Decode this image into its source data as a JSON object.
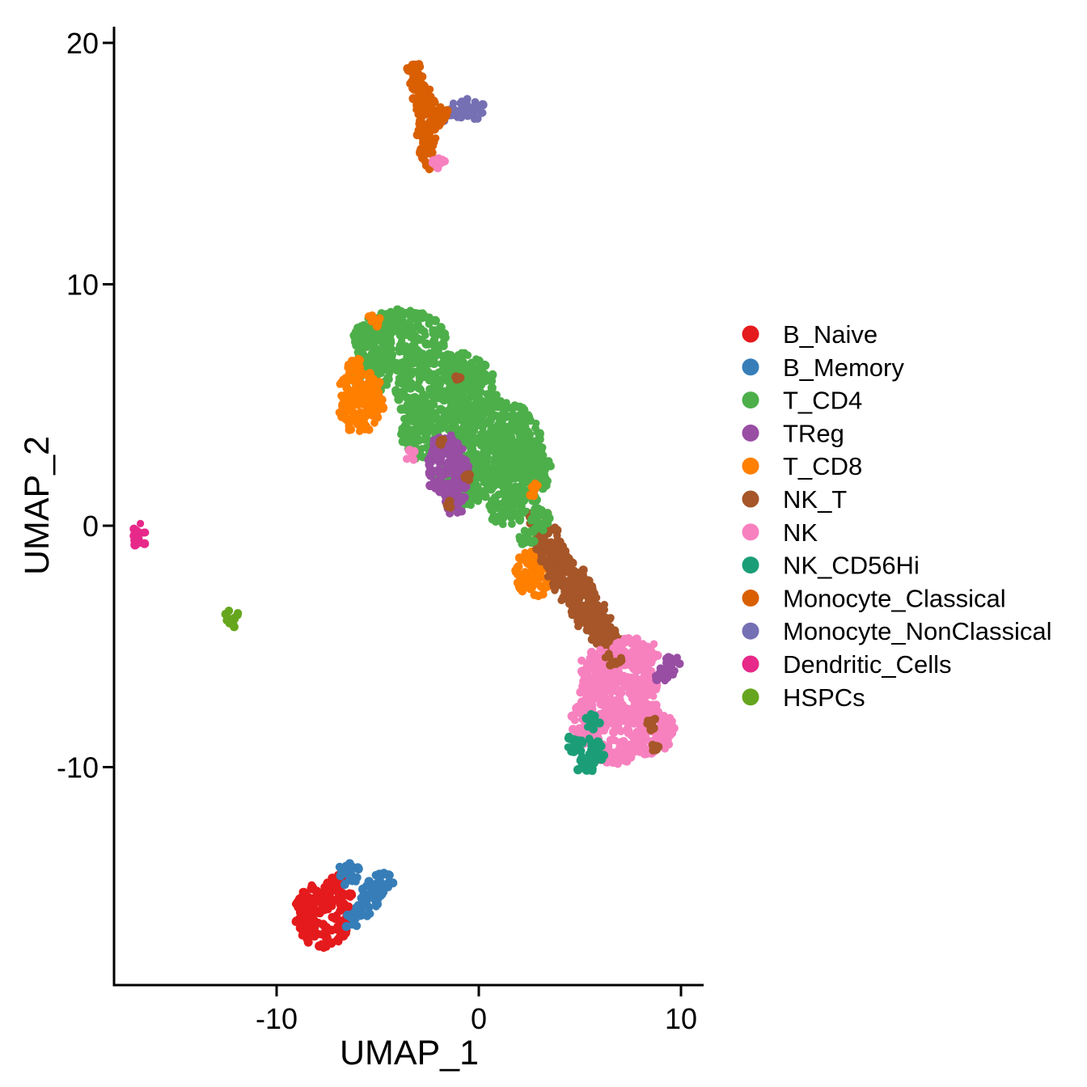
{
  "figure": {
    "background": "#ffffff",
    "axis_color": "#000000"
  },
  "chart_data": {
    "type": "scatter",
    "title": "",
    "xlabel": "UMAP_1",
    "ylabel": "UMAP_2",
    "xlim": [
      -18.0,
      11.2
    ],
    "ylim": [
      -19.0,
      20.7
    ],
    "grid": false,
    "legend_position": "right",
    "x_ticks": [
      {
        "value": -10,
        "label": "-10"
      },
      {
        "value": 0,
        "label": "0"
      },
      {
        "value": 10,
        "label": "10"
      }
    ],
    "y_ticks": [
      {
        "value": 20,
        "label": "20"
      },
      {
        "value": 10,
        "label": "10"
      },
      {
        "value": 0,
        "label": "0"
      },
      {
        "value": -10,
        "label": "-10"
      }
    ],
    "series": [
      {
        "name": "B_Naive",
        "color": "#e41a1c",
        "components": [
          [
            -7.75,
            -16.15,
            1.4,
            1.35,
            30
          ],
          [
            -7.05,
            -14.8,
            0.45,
            0.42,
            30
          ],
          [
            -6.32,
            -15.3,
            0.13,
            0.12,
            34
          ]
        ]
      },
      {
        "name": "B_Memory",
        "color": "#377eb8",
        "components": [
          [
            -6.5,
            -14.4,
            0.62,
            0.5,
            32
          ],
          [
            -6.3,
            -16.35,
            0.4,
            0.33,
            32
          ],
          [
            -5.8,
            -15.85,
            0.5,
            0.45,
            32
          ],
          [
            -5.25,
            -15.25,
            0.6,
            0.55,
            32
          ],
          [
            -4.75,
            -14.8,
            0.5,
            0.45,
            32
          ]
        ]
      },
      {
        "name": "T_CD4",
        "color": "#4daf4a",
        "components": [
          [
            -3.9,
            7.7,
            2.3,
            1.25,
            10
          ],
          [
            -1.6,
            5.6,
            2.5,
            1.7,
            10
          ],
          [
            0.8,
            3.6,
            2.4,
            1.6,
            10
          ],
          [
            2.1,
            2.2,
            1.5,
            1.4,
            10
          ],
          [
            -2.9,
            3.9,
            0.95,
            1.25,
            10
          ],
          [
            -0.7,
            1.8,
            1.5,
            1.0,
            10
          ],
          [
            1.4,
            0.8,
            1.0,
            0.8,
            10
          ],
          [
            -5.3,
            6.3,
            0.95,
            0.95,
            10
          ],
          [
            2.95,
            0.25,
            0.55,
            0.5,
            22
          ],
          [
            2.4,
            -0.5,
            0.4,
            0.35,
            22
          ]
        ]
      },
      {
        "name": "TReg",
        "color": "#984ea3",
        "components": [
          [
            -1.5,
            2.3,
            1.05,
            1.5,
            12
          ],
          [
            -1.95,
            3.2,
            0.5,
            0.5,
            12
          ],
          [
            -1.2,
            0.95,
            0.6,
            0.5,
            12
          ],
          [
            9.6,
            -5.8,
            0.45,
            0.42,
            22
          ],
          [
            9.15,
            -6.25,
            0.42,
            0.4,
            22
          ]
        ]
      },
      {
        "name": "T_CD8",
        "color": "#ff7f00",
        "components": [
          [
            -6.0,
            5.7,
            0.9,
            0.85,
            14
          ],
          [
            -5.9,
            4.8,
            1.0,
            0.95,
            14
          ],
          [
            -5.2,
            5.3,
            0.75,
            0.7,
            14
          ],
          [
            -6.15,
            6.6,
            0.4,
            0.38,
            14
          ],
          [
            -5.2,
            8.5,
            0.32,
            0.28,
            14
          ],
          [
            2.7,
            -2.0,
            0.95,
            1.0,
            14
          ],
          [
            2.75,
            1.5,
            0.33,
            0.3,
            20
          ]
        ]
      },
      {
        "name": "NK_T",
        "color": "#a65628",
        "components": [
          [
            3.0,
            0.2,
            0.55,
            0.5,
            16
          ],
          [
            3.35,
            -0.55,
            0.7,
            0.65,
            16
          ],
          [
            3.8,
            -1.3,
            0.8,
            0.75,
            16
          ],
          [
            4.3,
            -2.05,
            0.9,
            0.85,
            16
          ],
          [
            4.85,
            -2.85,
            0.9,
            0.85,
            16
          ],
          [
            5.45,
            -3.6,
            0.85,
            0.8,
            16
          ],
          [
            6.05,
            -4.3,
            0.75,
            0.7,
            16
          ],
          [
            6.5,
            -4.85,
            0.6,
            0.55,
            16
          ],
          [
            6.65,
            -5.55,
            0.42,
            0.3,
            20
          ],
          [
            8.55,
            -8.2,
            0.3,
            0.28,
            20
          ],
          [
            8.7,
            -9.2,
            0.24,
            0.2,
            20
          ],
          [
            -1.8,
            3.5,
            0.18,
            0.16,
            20
          ],
          [
            -0.5,
            2.0,
            0.2,
            0.18,
            20
          ],
          [
            -1.55,
            0.9,
            0.22,
            0.18,
            20
          ],
          [
            -1.05,
            6.1,
            0.15,
            0.13,
            20
          ]
        ]
      },
      {
        "name": "NK",
        "color": "#f781bf",
        "components": [
          [
            7.0,
            -7.0,
            2.0,
            1.6,
            18
          ],
          [
            7.7,
            -5.3,
            1.2,
            0.7,
            18
          ],
          [
            5.9,
            -5.9,
            0.9,
            0.8,
            18
          ],
          [
            8.5,
            -8.5,
            1.2,
            1.0,
            18
          ],
          [
            5.4,
            -8.2,
            0.9,
            0.9,
            18
          ],
          [
            6.7,
            -9.4,
            1.1,
            0.55,
            18
          ],
          [
            -3.35,
            2.9,
            0.28,
            0.26,
            11
          ],
          [
            -2.0,
            15.05,
            0.33,
            0.3,
            44
          ]
        ]
      },
      {
        "name": "NK_CD56Hi",
        "color": "#1b9e77",
        "components": [
          [
            5.35,
            -9.5,
            0.85,
            0.72,
            22
          ],
          [
            5.6,
            -8.15,
            0.4,
            0.36,
            22
          ],
          [
            4.65,
            -8.95,
            0.35,
            0.35,
            22
          ]
        ]
      },
      {
        "name": "Monocyte_Classical",
        "color": "#d95f02",
        "components": [
          [
            -3.2,
            18.85,
            0.42,
            0.4,
            42
          ],
          [
            -3.05,
            18.4,
            0.45,
            0.42,
            42
          ],
          [
            -2.85,
            17.9,
            0.5,
            0.45,
            42
          ],
          [
            -2.6,
            17.3,
            0.55,
            0.5,
            42
          ],
          [
            -2.4,
            16.8,
            0.55,
            0.5,
            42
          ],
          [
            -1.95,
            17.05,
            0.42,
            0.38,
            42
          ],
          [
            -2.55,
            16.2,
            0.5,
            0.46,
            42
          ],
          [
            -2.6,
            15.7,
            0.48,
            0.44,
            42
          ],
          [
            -2.45,
            15.15,
            0.45,
            0.4,
            42
          ]
        ]
      },
      {
        "name": "Monocyte_NonClassical",
        "color": "#7570b3",
        "components": [
          [
            -1.45,
            17.0,
            0.36,
            0.34,
            40
          ],
          [
            -0.8,
            17.3,
            0.55,
            0.48,
            40
          ],
          [
            -0.12,
            17.2,
            0.42,
            0.38,
            40
          ]
        ]
      },
      {
        "name": "Dendritic_Cells",
        "color": "#e7298a",
        "components": [
          [
            -16.8,
            -0.38,
            0.4,
            0.5,
            50
          ]
        ]
      },
      {
        "name": "HSPCs",
        "color": "#66a61e",
        "components": [
          [
            -12.2,
            -3.8,
            0.36,
            0.42,
            50
          ]
        ]
      }
    ]
  }
}
